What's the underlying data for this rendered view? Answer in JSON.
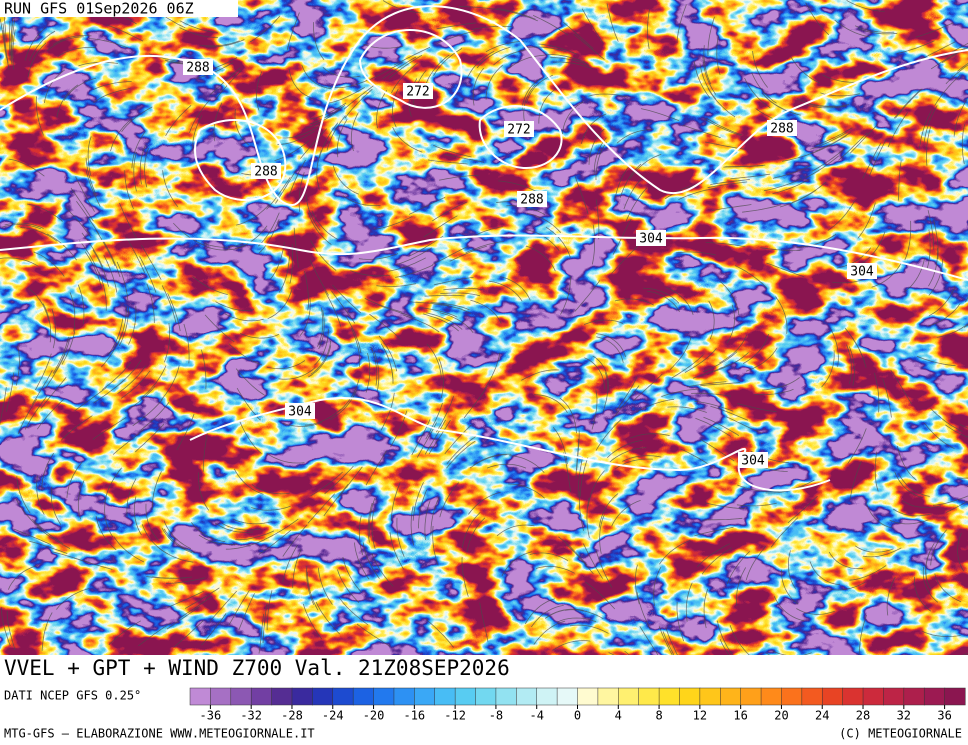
{
  "header": {
    "run": "RUN GFS 01Sep2026 06Z"
  },
  "map": {
    "contour_labels": [
      288,
      272,
      272,
      288,
      288,
      304,
      304,
      304,
      304,
      288
    ]
  },
  "title": "VVEL + GPT + WIND Z700 Val. 21Z08SEP2026",
  "source": "DATI NCEP GFS 0.25°",
  "colorbar": {
    "range": [
      -38,
      38
    ],
    "ticks": [
      -36,
      -32,
      -28,
      -24,
      -20,
      -16,
      -12,
      -8,
      -4,
      0,
      4,
      8,
      12,
      16,
      20,
      24,
      28,
      32,
      36
    ],
    "colors": [
      "#c08ad6",
      "#a670c4",
      "#8c58b3",
      "#723fa3",
      "#552d93",
      "#3a2a9e",
      "#2536b8",
      "#1d4bd0",
      "#1c62e3",
      "#2279ee",
      "#2d91f3",
      "#3aa8f6",
      "#48bdf5",
      "#58ccf2",
      "#72d8f0",
      "#92e2f1",
      "#b2ebf3",
      "#cff3f5",
      "#e6f9f8",
      "#fffbd0",
      "#fff6a0",
      "#fff070",
      "#ffe94a",
      "#ffe12a",
      "#ffd51a",
      "#ffc61a",
      "#ffb41a",
      "#ffa01a",
      "#ff8a1a",
      "#fb721c",
      "#f35a20",
      "#e84424",
      "#da3330",
      "#cc2a3c",
      "#bd2446",
      "#ad1f4c",
      "#9c1a52",
      "#8b1650"
    ]
  },
  "footer": {
    "left": "MTG-GFS — ELABORAZIONE WWW.METEOGIORNALE.IT",
    "right": "(C) METEOGIORNALE"
  }
}
